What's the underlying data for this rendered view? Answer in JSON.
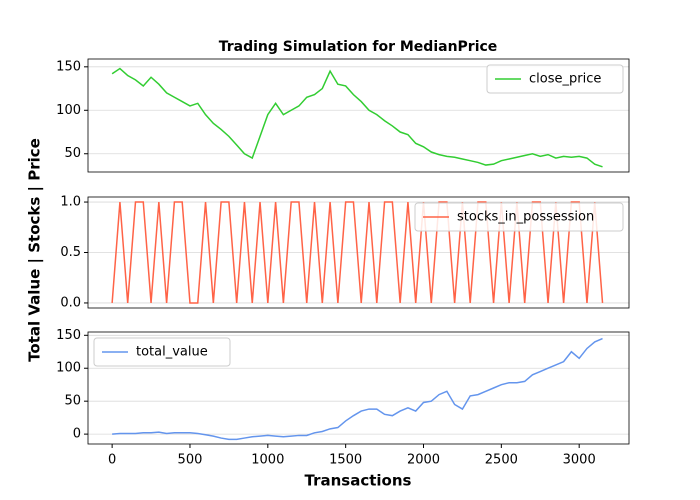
{
  "chart_data": [
    {
      "type": "line",
      "title": "Trading Simulation for MedianPrice",
      "x": [
        0,
        50,
        100,
        150,
        200,
        250,
        300,
        350,
        400,
        450,
        500,
        550,
        600,
        650,
        700,
        750,
        800,
        850,
        900,
        950,
        1000,
        1050,
        1100,
        1150,
        1200,
        1250,
        1300,
        1350,
        1400,
        1450,
        1500,
        1550,
        1600,
        1650,
        1700,
        1750,
        1800,
        1850,
        1900,
        1950,
        2000,
        2050,
        2100,
        2150,
        2200,
        2250,
        2300,
        2350,
        2400,
        2450,
        2500,
        2550,
        2600,
        2650,
        2700,
        2750,
        2800,
        2850,
        2900,
        2950,
        3000,
        3050,
        3100,
        3150
      ],
      "series": [
        {
          "name": "close_price",
          "color": "#32cd32",
          "values": [
            142,
            148,
            140,
            135,
            128,
            138,
            130,
            120,
            115,
            110,
            105,
            108,
            95,
            85,
            78,
            70,
            60,
            50,
            45,
            70,
            95,
            108,
            95,
            100,
            105,
            115,
            118,
            125,
            145,
            130,
            128,
            118,
            110,
            100,
            95,
            88,
            82,
            75,
            72,
            62,
            58,
            52,
            49,
            47,
            46,
            44,
            42,
            40,
            37,
            38,
            42,
            44,
            46,
            48,
            50,
            47,
            49,
            45,
            47,
            46,
            47,
            45,
            38,
            35
          ]
        }
      ],
      "xlim": [
        -155,
        3320
      ],
      "ylim": [
        29,
        159
      ],
      "yticks": [
        50,
        100,
        150
      ],
      "grid": true,
      "legend": "upper right"
    },
    {
      "type": "line",
      "ylabel": "Total Value | Stocks | Price",
      "x": [
        0,
        50,
        100,
        150,
        200,
        250,
        300,
        350,
        400,
        450,
        500,
        550,
        600,
        650,
        700,
        750,
        800,
        850,
        900,
        950,
        1000,
        1050,
        1100,
        1150,
        1200,
        1250,
        1300,
        1350,
        1400,
        1450,
        1500,
        1550,
        1600,
        1650,
        1700,
        1750,
        1800,
        1850,
        1900,
        1950,
        2000,
        2050,
        2100,
        2150,
        2200,
        2250,
        2300,
        2350,
        2400,
        2450,
        2500,
        2550,
        2600,
        2650,
        2700,
        2750,
        2800,
        2850,
        2900,
        2950,
        3000,
        3050,
        3100,
        3150
      ],
      "series": [
        {
          "name": "stocks_in_possession",
          "color": "#ff6347",
          "values": [
            0,
            1,
            0,
            1,
            1,
            0,
            1,
            0,
            1,
            1,
            0,
            0,
            1,
            0,
            1,
            1,
            0,
            1,
            0,
            1,
            0,
            1,
            0,
            1,
            1,
            0,
            1,
            0,
            1,
            0,
            1,
            1,
            0,
            1,
            0,
            1,
            1,
            0,
            1,
            0,
            1,
            0,
            1,
            1,
            0,
            1,
            0,
            1,
            1,
            0,
            1,
            0,
            1,
            0,
            1,
            1,
            0,
            1,
            0,
            1,
            1,
            0,
            1,
            0
          ]
        }
      ],
      "xlim": [
        -155,
        3320
      ],
      "ylim": [
        -0.05,
        1.05
      ],
      "yticks": [
        {
          "value": 0,
          "label": "0.0"
        },
        {
          "value": 0.5,
          "label": "0.5"
        },
        {
          "value": 1,
          "label": "1.0"
        }
      ],
      "grid": true,
      "legend": "upper right"
    },
    {
      "type": "line",
      "xlabel": "Transactions",
      "x": [
        0,
        50,
        100,
        150,
        200,
        250,
        300,
        350,
        400,
        450,
        500,
        550,
        600,
        650,
        700,
        750,
        800,
        850,
        900,
        950,
        1000,
        1050,
        1100,
        1150,
        1200,
        1250,
        1300,
        1350,
        1400,
        1450,
        1500,
        1550,
        1600,
        1650,
        1700,
        1750,
        1800,
        1850,
        1900,
        1950,
        2000,
        2050,
        2100,
        2150,
        2200,
        2250,
        2300,
        2350,
        2400,
        2450,
        2500,
        2550,
        2600,
        2650,
        2700,
        2750,
        2800,
        2850,
        2900,
        2950,
        3000,
        3050,
        3100,
        3150
      ],
      "series": [
        {
          "name": "total_value",
          "color": "#6495ed",
          "values": [
            0,
            1,
            1,
            1,
            2,
            2,
            3,
            1,
            2,
            2,
            2,
            1,
            -1,
            -3,
            -6,
            -8,
            -8,
            -6,
            -4,
            -3,
            -2,
            -3,
            -4,
            -3,
            -2,
            -2,
            2,
            4,
            8,
            10,
            20,
            28,
            35,
            38,
            38,
            30,
            28,
            35,
            40,
            35,
            48,
            50,
            60,
            65,
            45,
            38,
            58,
            60,
            65,
            70,
            75,
            78,
            78,
            80,
            90,
            95,
            100,
            105,
            110,
            125,
            115,
            130,
            140,
            145
          ]
        }
      ],
      "xlim": [
        -155,
        3320
      ],
      "ylim": [
        -15,
        155
      ],
      "yticks": [
        0,
        50,
        100,
        150
      ],
      "xticks": [
        0,
        500,
        1000,
        1500,
        2000,
        2500,
        3000
      ],
      "grid": true,
      "legend": "upper left"
    }
  ]
}
